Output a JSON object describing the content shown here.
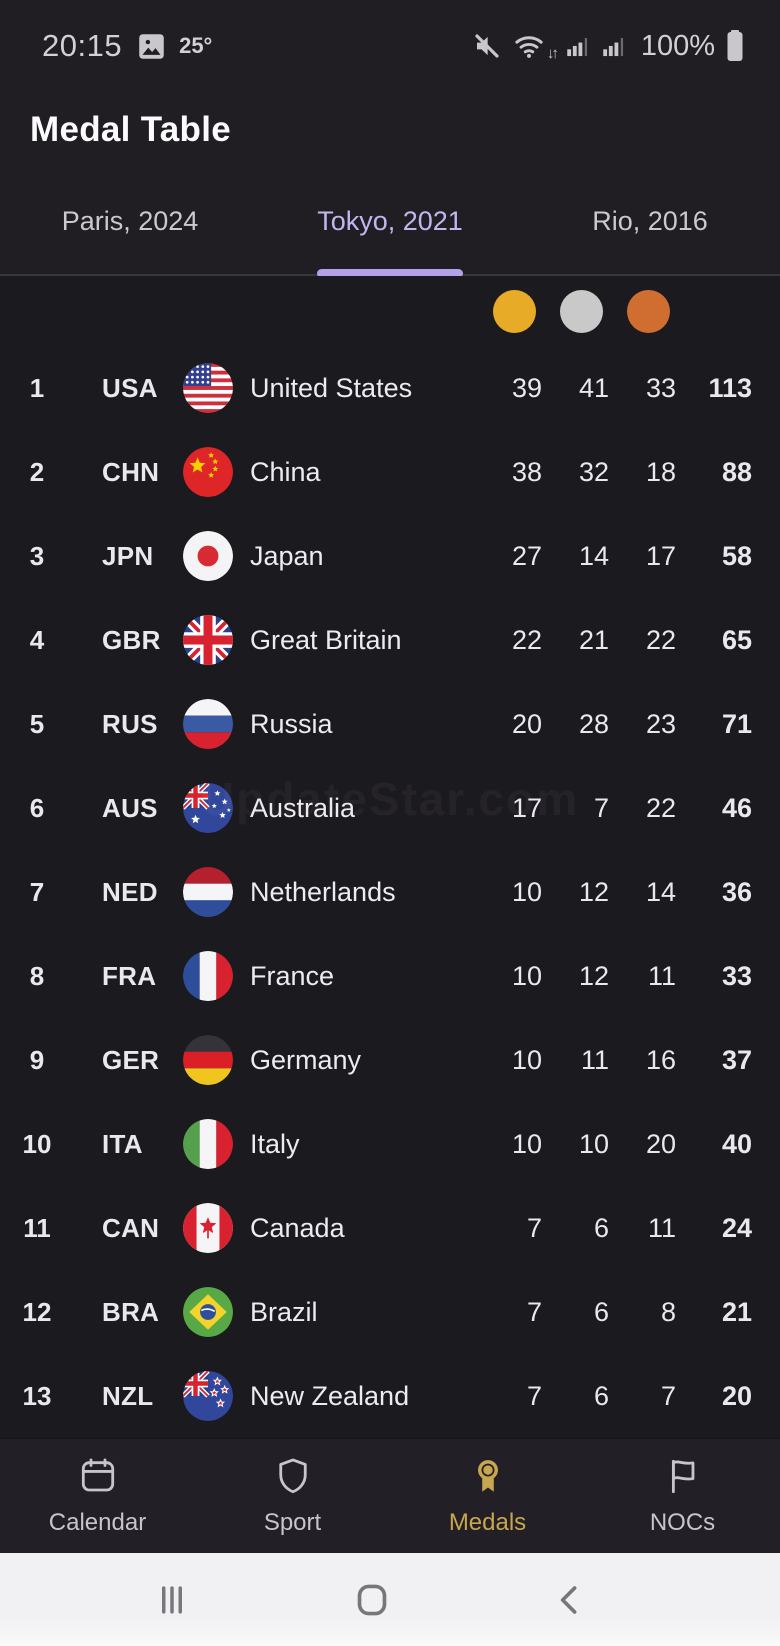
{
  "status_bar": {
    "time": "20:15",
    "temperature": "25°",
    "battery_level": "100%",
    "left_icons": [
      "picture-icon"
    ],
    "right_icons": [
      "mute-icon",
      "wifi-icon",
      "signal-icon",
      "signal-icon",
      "battery-icon"
    ]
  },
  "header": {
    "title": "Medal Table"
  },
  "tabs": [
    {
      "label": "Paris, 2024",
      "active": false
    },
    {
      "label": "Tokyo, 2021",
      "active": true
    },
    {
      "label": "Rio, 2016",
      "active": false
    }
  ],
  "accent": {
    "tab_active": "#c3b6f0",
    "tab_indicator": "#b3a2ea"
  },
  "medal_legend": {
    "gold_color": "#e7ab28",
    "silver_color": "#c9c9c9",
    "bronze_color": "#d06e31"
  },
  "table": {
    "rows": [
      {
        "rank": "1",
        "code": "USA",
        "flag": "usa",
        "country": "United States",
        "gold": "39",
        "silver": "41",
        "bronze": "33",
        "total": "113"
      },
      {
        "rank": "2",
        "code": "CHN",
        "flag": "chn",
        "country": "China",
        "gold": "38",
        "silver": "32",
        "bronze": "18",
        "total": "88"
      },
      {
        "rank": "3",
        "code": "JPN",
        "flag": "jpn",
        "country": "Japan",
        "gold": "27",
        "silver": "14",
        "bronze": "17",
        "total": "58"
      },
      {
        "rank": "4",
        "code": "GBR",
        "flag": "gbr",
        "country": "Great Britain",
        "gold": "22",
        "silver": "21",
        "bronze": "22",
        "total": "65"
      },
      {
        "rank": "5",
        "code": "RUS",
        "flag": "rus",
        "country": "Russia",
        "gold": "20",
        "silver": "28",
        "bronze": "23",
        "total": "71"
      },
      {
        "rank": "6",
        "code": "AUS",
        "flag": "aus",
        "country": "Australia",
        "gold": "17",
        "silver": "7",
        "bronze": "22",
        "total": "46"
      },
      {
        "rank": "7",
        "code": "NED",
        "flag": "ned",
        "country": "Netherlands",
        "gold": "10",
        "silver": "12",
        "bronze": "14",
        "total": "36"
      },
      {
        "rank": "8",
        "code": "FRA",
        "flag": "fra",
        "country": "France",
        "gold": "10",
        "silver": "12",
        "bronze": "11",
        "total": "33"
      },
      {
        "rank": "9",
        "code": "GER",
        "flag": "ger",
        "country": "Germany",
        "gold": "10",
        "silver": "11",
        "bronze": "16",
        "total": "37"
      },
      {
        "rank": "10",
        "code": "ITA",
        "flag": "ita",
        "country": "Italy",
        "gold": "10",
        "silver": "10",
        "bronze": "20",
        "total": "40"
      },
      {
        "rank": "11",
        "code": "CAN",
        "flag": "can",
        "country": "Canada",
        "gold": "7",
        "silver": "6",
        "bronze": "11",
        "total": "24"
      },
      {
        "rank": "12",
        "code": "BRA",
        "flag": "bra",
        "country": "Brazil",
        "gold": "7",
        "silver": "6",
        "bronze": "8",
        "total": "21"
      },
      {
        "rank": "13",
        "code": "NZL",
        "flag": "nzl",
        "country": "New Zealand",
        "gold": "7",
        "silver": "6",
        "bronze": "7",
        "total": "20"
      }
    ]
  },
  "watermark": "UpdateStar.com",
  "bottom_nav": {
    "active_color": "#c8a64f",
    "items": [
      {
        "label": "Calendar",
        "icon": "calendar-icon",
        "active": false
      },
      {
        "label": "Sport",
        "icon": "shield-icon",
        "active": false
      },
      {
        "label": "Medals",
        "icon": "medal-icon",
        "active": true
      },
      {
        "label": "NOCs",
        "icon": "flag-icon",
        "active": false
      }
    ]
  },
  "android_nav": {
    "buttons": [
      "recents",
      "home",
      "back"
    ]
  }
}
